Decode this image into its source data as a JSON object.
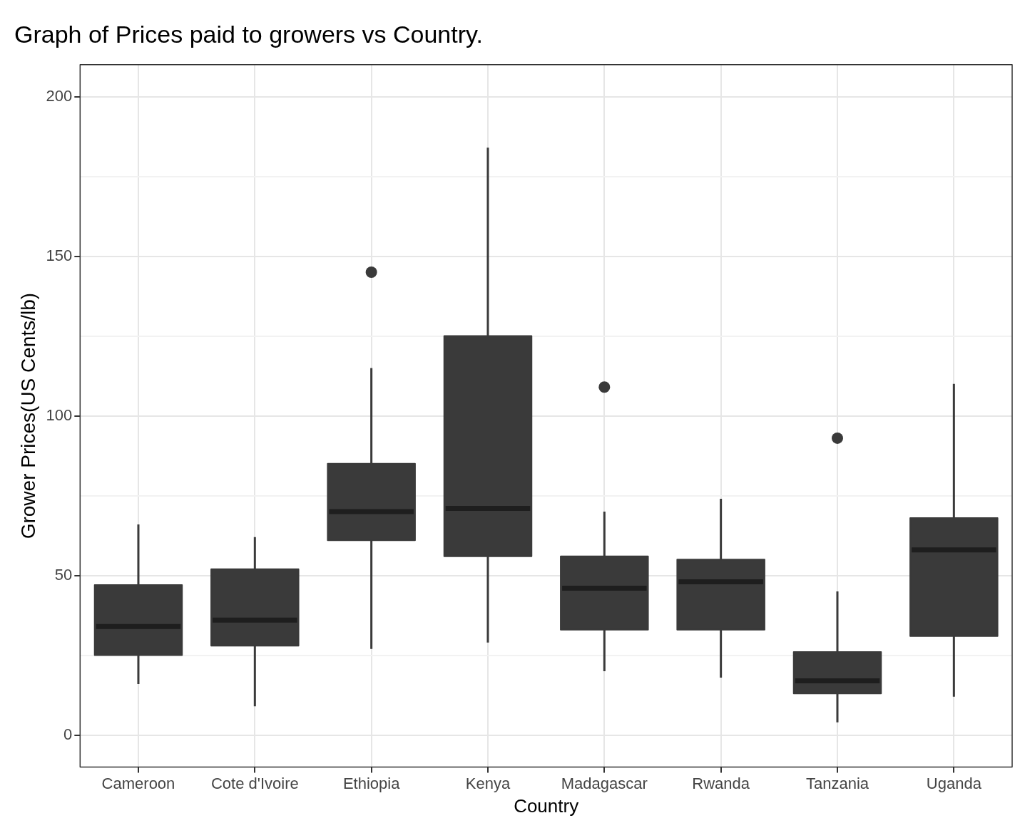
{
  "chart_data": {
    "type": "box",
    "title": "Graph of Prices paid to growers vs Country.",
    "xlabel": "Country",
    "ylabel": "Grower Prices(US Cents/lb)",
    "categories": [
      "Cameroon",
      "Cote d'Ivoire",
      "Ethiopia",
      "Kenya",
      "Madagascar",
      "Rwanda",
      "Tanzania",
      "Uganda"
    ],
    "color": "#3a3a3a",
    "boxes": [
      {
        "low": 16,
        "q1": 25,
        "median": 34,
        "q3": 47,
        "high": 66
      },
      {
        "low": 9,
        "q1": 28,
        "median": 36,
        "q3": 52,
        "high": 62
      },
      {
        "low": 27,
        "q1": 61,
        "median": 70,
        "q3": 85,
        "high": 115,
        "outliers": [
          145
        ]
      },
      {
        "low": 29,
        "q1": 56,
        "median": 71,
        "q3": 125,
        "high": 184
      },
      {
        "low": 20,
        "q1": 33,
        "median": 46,
        "q3": 56,
        "high": 70,
        "outliers": [
          109
        ]
      },
      {
        "low": 18,
        "q1": 33,
        "median": 48,
        "q3": 55,
        "high": 74
      },
      {
        "low": 4,
        "q1": 13,
        "median": 17,
        "q3": 26,
        "high": 45,
        "outliers": [
          93
        ]
      },
      {
        "low": 12,
        "q1": 31,
        "median": 58,
        "q3": 68,
        "high": 110
      }
    ],
    "ylim": [
      -10,
      210
    ],
    "yticks": [
      0,
      {
        "value": 25,
        "label": null
      },
      50,
      {
        "value": 75,
        "label": null
      },
      100,
      {
        "value": 125,
        "label": null
      },
      150,
      {
        "value": 175,
        "label": null
      },
      200
    ],
    "grid": true,
    "legend": false
  }
}
